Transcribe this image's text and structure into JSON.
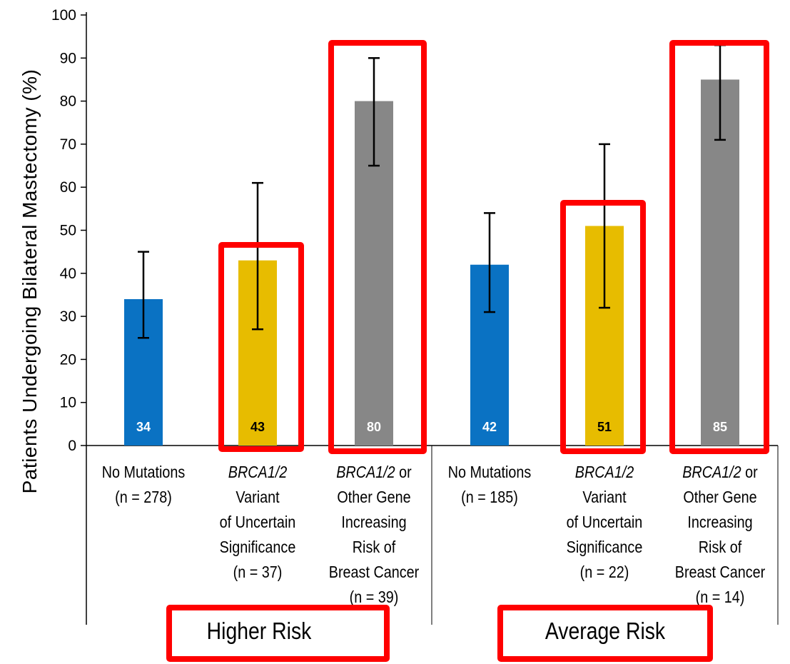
{
  "chart_data": {
    "type": "bar",
    "ylabel": "Patients Undergoing Bilateral Mastectomy (%)",
    "xlabel": "",
    "ylim": [
      0,
      100
    ],
    "yticks": [
      0,
      10,
      20,
      30,
      40,
      50,
      60,
      70,
      80,
      90,
      100
    ],
    "grid": false,
    "bars": [
      {
        "label_lines": [
          {
            "text": "No Mutations",
            "italic_prefix": ""
          },
          {
            "text": "(n = 278)",
            "italic_prefix": ""
          }
        ],
        "value": 34,
        "value_label": "34",
        "err_low": 25,
        "err_high": 45,
        "color": "#0A72C3",
        "value_text_color": "#ffffff",
        "group": "Higher Risk"
      },
      {
        "label_lines": [
          {
            "text": "",
            "italic_prefix": "BRCA1/2"
          },
          {
            "text": "Variant",
            "italic_prefix": ""
          },
          {
            "text": "of Uncertain",
            "italic_prefix": ""
          },
          {
            "text": "Significance",
            "italic_prefix": ""
          },
          {
            "text": "(n = 37)",
            "italic_prefix": ""
          }
        ],
        "value": 43,
        "value_label": "43",
        "err_low": 27,
        "err_high": 61,
        "color": "#E7BC00",
        "value_text_color": "#000000",
        "group": "Higher Risk"
      },
      {
        "label_lines": [
          {
            "text": " or",
            "italic_prefix": "BRCA1/2"
          },
          {
            "text": "Other Gene",
            "italic_prefix": ""
          },
          {
            "text": "Increasing",
            "italic_prefix": ""
          },
          {
            "text": "Risk of",
            "italic_prefix": ""
          },
          {
            "text": "Breast Cancer",
            "italic_prefix": ""
          },
          {
            "text": "(n = 39)",
            "italic_prefix": ""
          }
        ],
        "value": 80,
        "value_label": "80",
        "err_low": 65,
        "err_high": 90,
        "color": "#878787",
        "value_text_color": "#ffffff",
        "group": "Higher Risk"
      },
      {
        "label_lines": [
          {
            "text": "No Mutations",
            "italic_prefix": ""
          },
          {
            "text": "(n = 185)",
            "italic_prefix": ""
          }
        ],
        "value": 42,
        "value_label": "42",
        "err_low": 31,
        "err_high": 54,
        "color": "#0A72C3",
        "value_text_color": "#ffffff",
        "group": "Average Risk"
      },
      {
        "label_lines": [
          {
            "text": "",
            "italic_prefix": "BRCA1/2"
          },
          {
            "text": "Variant",
            "italic_prefix": ""
          },
          {
            "text": "of Uncertain",
            "italic_prefix": ""
          },
          {
            "text": "Significance",
            "italic_prefix": ""
          },
          {
            "text": "(n = 22)",
            "italic_prefix": ""
          }
        ],
        "value": 51,
        "value_label": "51",
        "err_low": 32,
        "err_high": 70,
        "color": "#E7BC00",
        "value_text_color": "#000000",
        "group": "Average Risk"
      },
      {
        "label_lines": [
          {
            "text": " or",
            "italic_prefix": "BRCA1/2"
          },
          {
            "text": "Other Gene",
            "italic_prefix": ""
          },
          {
            "text": "Increasing",
            "italic_prefix": ""
          },
          {
            "text": "Risk of",
            "italic_prefix": ""
          },
          {
            "text": "Breast Cancer",
            "italic_prefix": ""
          },
          {
            "text": "(n = 14)",
            "italic_prefix": ""
          }
        ],
        "value": 85,
        "value_label": "85",
        "err_low": 71,
        "err_high": 93,
        "color": "#878787",
        "value_text_color": "#ffffff",
        "group": "Average Risk"
      }
    ],
    "groups": [
      "Higher Risk",
      "Average Risk"
    ],
    "highlighted_bars": [
      1,
      2,
      4,
      5
    ],
    "highlight_color": "#FF0000"
  }
}
